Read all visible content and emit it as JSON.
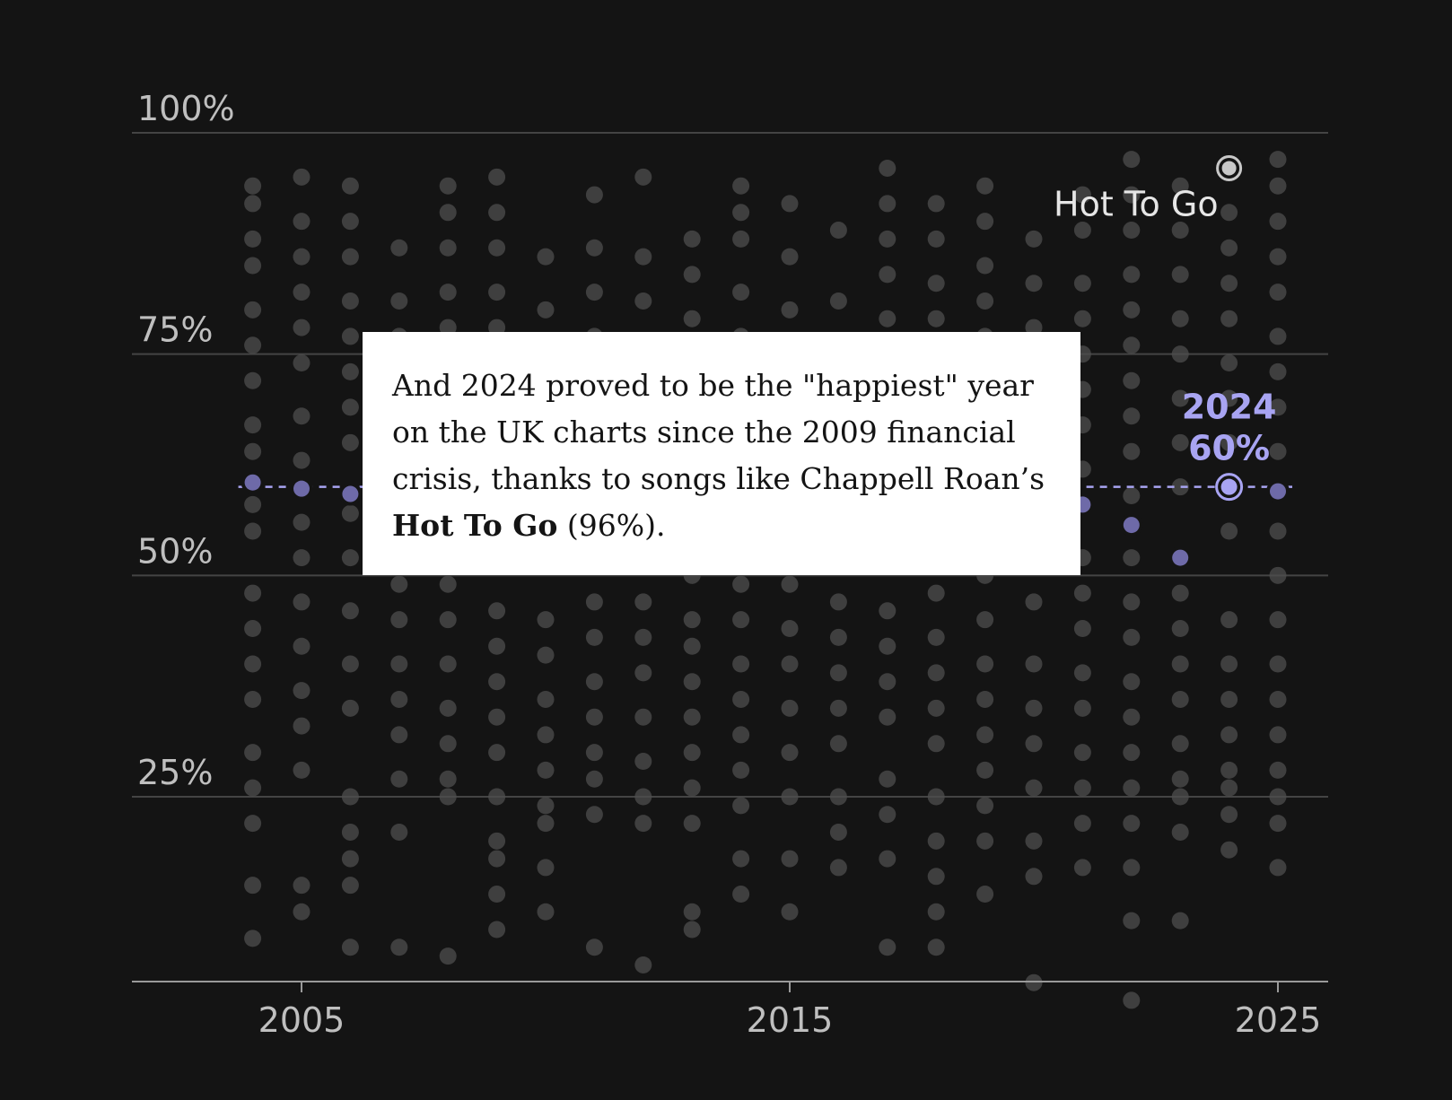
{
  "chart_data": {
    "type": "scatter",
    "title": "",
    "xlabel": "",
    "ylabel": "",
    "xlim": [
      2001.5,
      2026
    ],
    "ylim": [
      0,
      100
    ],
    "x_ticks": [
      {
        "value": 2005,
        "label": "2005"
      },
      {
        "value": 2015,
        "label": "2015"
      },
      {
        "value": 2025,
        "label": "2025"
      }
    ],
    "y_ticks": [
      {
        "value": 25,
        "label": "25%"
      },
      {
        "value": 50,
        "label": "50%"
      },
      {
        "value": 75,
        "label": "75%"
      },
      {
        "value": 100,
        "label": "100%"
      }
    ],
    "grid": true,
    "colors": {
      "background": "#141414",
      "song_dot": "#4d4d4d",
      "year_average": "#6e6aa8",
      "highlight": "#a8a4f2",
      "song_highlight": "#c8c8c8"
    },
    "year_averages": [
      {
        "x": 2004,
        "y": 60.5
      },
      {
        "x": 2005,
        "y": 59.8
      },
      {
        "x": 2006,
        "y": 59.2
      },
      {
        "x": 2021,
        "y": 58.0
      },
      {
        "x": 2022,
        "y": 55.7
      },
      {
        "x": 2023,
        "y": 52.0
      },
      {
        "x": 2024,
        "y": 60.0
      },
      {
        "x": 2025,
        "y": 59.5
      }
    ],
    "highlight_year": {
      "x": 2024,
      "y": 60,
      "year_label": "2024",
      "value_label": "60%"
    },
    "highlight_song": {
      "x": 2024,
      "y": 96,
      "label": "Hot To Go"
    },
    "songs": [
      {
        "x": 2004,
        "values": [
          94,
          92,
          88,
          85,
          80,
          76,
          72,
          67,
          64,
          58,
          55,
          48,
          44,
          40,
          36,
          30,
          26,
          22,
          15,
          9
        ]
      },
      {
        "x": 2005,
        "values": [
          95,
          90,
          86,
          82,
          78,
          74,
          68,
          63,
          56,
          52,
          47,
          42,
          37,
          33,
          28,
          15,
          12
        ]
      },
      {
        "x": 2006,
        "values": [
          94,
          90,
          86,
          81,
          77,
          73,
          69,
          65,
          57,
          52,
          46,
          40,
          35,
          25,
          21,
          18,
          15,
          8
        ]
      },
      {
        "x": 2007,
        "values": [
          87,
          81,
          77,
          72,
          66,
          62,
          55,
          49,
          45,
          40,
          36,
          32,
          27,
          21,
          8
        ]
      },
      {
        "x": 2008,
        "values": [
          94,
          91,
          87,
          82,
          78,
          74,
          68,
          63,
          57,
          53,
          49,
          45,
          40,
          35,
          31,
          27,
          25,
          7
        ]
      },
      {
        "x": 2009,
        "values": [
          95,
          91,
          87,
          82,
          78,
          74,
          69,
          64,
          56,
          51,
          46,
          42,
          38,
          34,
          30,
          25,
          20,
          18,
          14,
          10
        ]
      },
      {
        "x": 2010,
        "values": [
          86,
          80,
          76,
          72,
          68,
          63,
          57,
          51,
          45,
          41,
          36,
          32,
          28,
          24,
          22,
          17,
          12
        ]
      },
      {
        "x": 2011,
        "values": [
          93,
          87,
          82,
          77,
          73,
          68,
          63,
          58,
          52,
          47,
          43,
          38,
          34,
          30,
          27,
          23,
          8
        ]
      },
      {
        "x": 2012,
        "values": [
          95,
          86,
          81,
          75,
          70,
          65,
          57,
          53,
          47,
          43,
          39,
          34,
          29,
          25,
          22,
          6
        ]
      },
      {
        "x": 2013,
        "values": [
          88,
          84,
          79,
          74,
          70,
          66,
          60,
          55,
          50,
          45,
          42,
          38,
          34,
          30,
          26,
          22,
          12,
          10
        ]
      },
      {
        "x": 2014,
        "values": [
          94,
          91,
          88,
          82,
          77,
          73,
          69,
          64,
          59,
          53,
          49,
          45,
          40,
          36,
          32,
          28,
          24,
          18,
          14
        ]
      },
      {
        "x": 2015,
        "values": [
          92,
          86,
          80,
          76,
          70,
          65,
          60,
          55,
          49,
          44,
          40,
          35,
          30,
          25,
          18,
          12
        ]
      },
      {
        "x": 2016,
        "values": [
          89,
          81,
          76,
          71,
          66,
          62,
          57,
          52,
          47,
          43,
          39,
          35,
          31,
          25,
          21,
          17
        ]
      },
      {
        "x": 2017,
        "values": [
          96,
          92,
          88,
          84,
          79,
          75,
          71,
          66,
          61,
          56,
          51,
          46,
          42,
          38,
          34,
          27,
          23,
          18,
          8
        ]
      },
      {
        "x": 2018,
        "values": [
          92,
          88,
          83,
          79,
          75,
          70,
          65,
          60,
          54,
          48,
          43,
          39,
          35,
          31,
          25,
          20,
          16,
          12,
          8
        ]
      },
      {
        "x": 2019,
        "values": [
          94,
          90,
          85,
          81,
          77,
          72,
          67,
          61,
          55,
          50,
          45,
          40,
          36,
          32,
          28,
          24,
          20,
          14
        ]
      },
      {
        "x": 2020,
        "values": [
          88,
          83,
          78,
          73,
          68,
          63,
          57,
          52,
          47,
          40,
          35,
          31,
          26,
          20,
          16,
          4
        ]
      },
      {
        "x": 2021,
        "values": [
          93,
          89,
          83,
          79,
          75,
          71,
          67,
          62,
          52,
          48,
          44,
          39,
          35,
          30,
          26,
          22,
          17
        ]
      },
      {
        "x": 2022,
        "values": [
          97,
          93,
          89,
          84,
          80,
          76,
          72,
          68,
          64,
          59,
          52,
          47,
          43,
          38,
          34,
          30,
          26,
          22,
          17,
          11,
          2
        ]
      },
      {
        "x": 2023,
        "values": [
          94,
          89,
          84,
          79,
          75,
          70,
          65,
          60,
          48,
          44,
          40,
          36,
          31,
          27,
          25,
          21,
          11
        ]
      },
      {
        "x": 2024,
        "values": [
          91,
          87,
          83,
          79,
          74,
          70,
          65,
          55,
          45,
          40,
          36,
          32,
          28,
          26,
          23,
          19
        ]
      },
      {
        "x": 2025,
        "values": [
          97,
          94,
          90,
          86,
          82,
          77,
          73,
          69,
          64,
          55,
          50,
          45,
          40,
          36,
          32,
          28,
          25,
          22,
          17
        ]
      }
    ]
  },
  "callout": {
    "text_before": "And 2024 proved to be the \"happiest\" year on the UK charts since the 2009 financial crisis, thanks to songs like Chappell Roan’s ",
    "song_name": "Hot To Go",
    "text_after": " (96%)."
  }
}
